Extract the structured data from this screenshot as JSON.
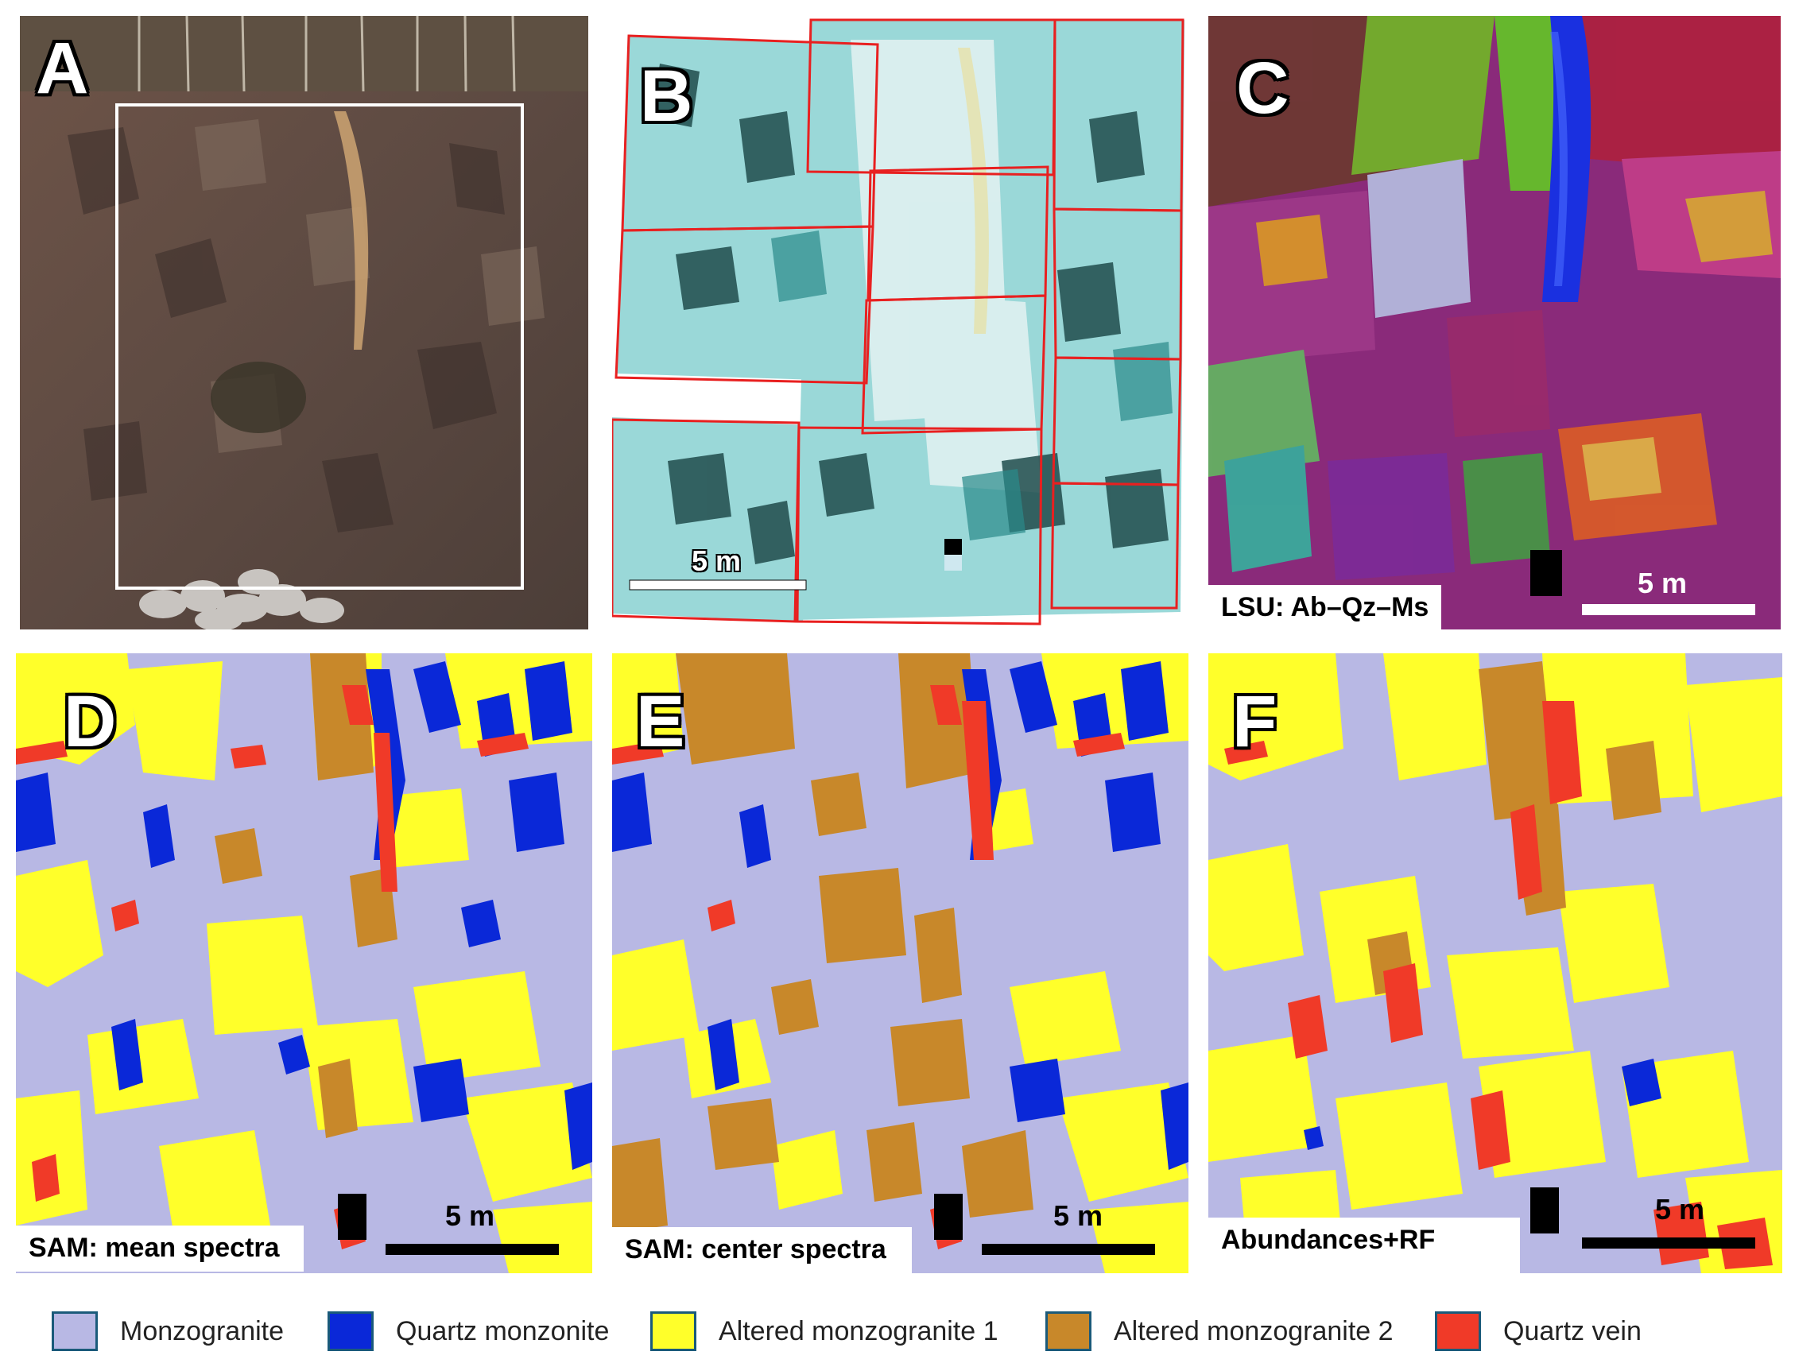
{
  "panels": {
    "a": {
      "letter": "A"
    },
    "b": {
      "letter": "B",
      "scale": "5 m"
    },
    "c": {
      "letter": "C",
      "scale": "5 m",
      "caption": "LSU: Ab–Qz–Ms"
    },
    "d": {
      "letter": "D",
      "scale": "5 m",
      "caption": "SAM: mean spectra"
    },
    "e": {
      "letter": "E",
      "scale": "5 m",
      "caption": "SAM: center spectra"
    },
    "f": {
      "letter": "F",
      "scale": "5 m",
      "caption": "Abundances+RF"
    }
  },
  "legend": [
    {
      "label": "Monzogranite",
      "color": "#b8b8e4"
    },
    {
      "label": "Quartz monzonite",
      "color": "#0a28d8"
    },
    {
      "label": "Altered monzogranite 1",
      "color": "#ffff2a"
    },
    {
      "label": "Altered monzogranite 2",
      "color": "#c8882a"
    },
    {
      "label": "Quartz vein",
      "color": "#f03a28"
    }
  ]
}
